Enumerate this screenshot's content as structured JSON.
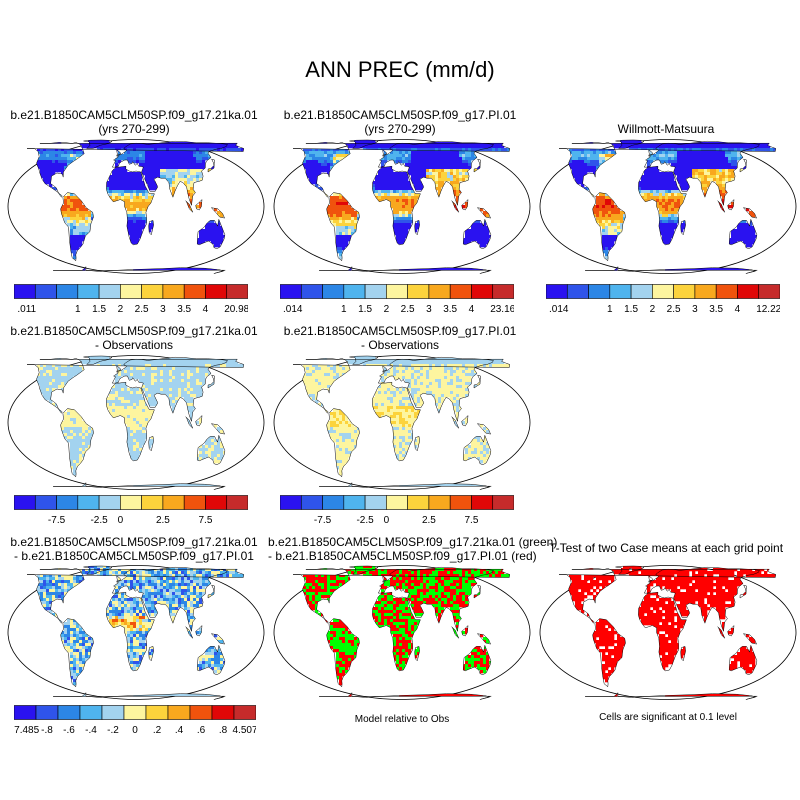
{
  "figure": {
    "title": "ANN PREC (mm/d)"
  },
  "palette": {
    "abs": [
      "#2a12f0",
      "#2f54ea",
      "#2c86e6",
      "#4fb4ee",
      "#a3d3ef",
      "#fdf59f",
      "#fcd33c",
      "#f8a81e",
      "#f0530d",
      "#e00707",
      "#c62b2b"
    ],
    "diff": [
      "#2a12f0",
      "#2f54ea",
      "#2c86e6",
      "#4fb4ee",
      "#a3d3ef",
      "#fdf59f",
      "#fcd33c",
      "#f8a81e",
      "#f0530d",
      "#e00707",
      "#c62b2b"
    ],
    "green": "#00ff00",
    "red": "#ff0000",
    "sea": "#ffffff"
  },
  "panels": [
    {
      "id": "p1",
      "title_l1": "b.e21.B1850CAM5CLM50SP.f09_g17.21ka.01",
      "title_l2": "(yrs 270-299)",
      "field": "case",
      "cbar": "abs",
      "cbar_labels": [
        ".011",
        "1",
        "1.5",
        "2",
        "2.5",
        "3",
        "3.5",
        "4",
        "20.982"
      ]
    },
    {
      "id": "p2",
      "title_l1": "b.e21.B1850CAM5CLM50SP.f09_g17.PI.01",
      "title_l2": "(yrs 270-299)",
      "field": "case",
      "cbar": "abs",
      "cbar_labels": [
        ".014",
        "1",
        "1.5",
        "2",
        "2.5",
        "3",
        "3.5",
        "4",
        "23.167"
      ]
    },
    {
      "id": "p3",
      "title_l1": "Willmott-Matsuura",
      "title_l2": "",
      "field": "obs",
      "cbar": "abs",
      "cbar_labels": [
        ".014",
        "1",
        "1.5",
        "2",
        "2.5",
        "3",
        "3.5",
        "4",
        "12.227"
      ]
    },
    {
      "id": "p4",
      "title_l1": "b.e21.B1850CAM5CLM50SP.f09_g17.21ka.01",
      "title_l2": "- Observations",
      "field": "bias21",
      "cbar": "diff",
      "cbar_labels": [
        "-7.5",
        "-2.5",
        "0",
        "2.5",
        "7.5"
      ]
    },
    {
      "id": "p5",
      "title_l1": "b.e21.B1850CAM5CLM50SP.f09_g17.PI.01",
      "title_l2": "- Observations",
      "field": "biasPI",
      "cbar": "diff",
      "cbar_labels": [
        "-7.5",
        "-2.5",
        "0",
        "2.5",
        "7.5"
      ]
    },
    {
      "id": "p7",
      "title_l1": "b.e21.B1850CAM5CLM50SP.f09_g17.21ka.01",
      "title_l2": "- b.e21.B1850CAM5CLM50SP.f09_g17.PI.01",
      "field": "casediff",
      "cbar": "diff",
      "cbar_labels": [
        "-7.485",
        "-.8",
        "-.6",
        "-.4",
        "-.2",
        "0",
        ".2",
        ".4",
        ".6",
        ".8",
        "4.507"
      ]
    },
    {
      "id": "p8",
      "title_l1": "b.e21.B1850CAM5CLM50SP.f09_g17.21ka.01 (green)",
      "title_l2": "- b.e21.B1850CAM5CLM50SP.f09_g17.PI.01 (red)",
      "field": "relobs",
      "caption": "Model relative to Obs"
    },
    {
      "id": "p9",
      "title_l1": "T-Test of two Case means at each grid point",
      "title_l2": "",
      "field": "ttest",
      "caption": "Cells are significant at 0.1 level"
    }
  ],
  "chart_data": [
    {
      "type": "heatmap",
      "title": "b.e21.B1850CAM5CLM50SP.f09_g17.21ka.01 (yrs 270-299)",
      "units": "mm/d",
      "min": 0.011,
      "max": 20.982,
      "contour_levels": [
        1,
        1.5,
        2,
        2.5,
        3,
        3.5,
        4
      ],
      "scale_labels": [
        ".011",
        "1",
        "1.5",
        "2",
        "2.5",
        "3",
        "3.5",
        "4",
        "20.982"
      ]
    },
    {
      "type": "heatmap",
      "title": "b.e21.B1850CAM5CLM50SP.f09_g17.PI.01 (yrs 270-299)",
      "units": "mm/d",
      "min": 0.014,
      "max": 23.167,
      "contour_levels": [
        1,
        1.5,
        2,
        2.5,
        3,
        3.5,
        4
      ],
      "scale_labels": [
        ".014",
        "1",
        "1.5",
        "2",
        "2.5",
        "3",
        "3.5",
        "4",
        "23.167"
      ]
    },
    {
      "type": "heatmap",
      "title": "Willmott-Matsuura",
      "units": "mm/d",
      "min": 0.014,
      "max": 12.227,
      "contour_levels": [
        1,
        1.5,
        2,
        2.5,
        3,
        3.5,
        4
      ],
      "scale_labels": [
        ".014",
        "1",
        "1.5",
        "2",
        "2.5",
        "3",
        "3.5",
        "4",
        "12.227"
      ]
    },
    {
      "type": "heatmap",
      "title": "b.e21.B1850CAM5CLM50SP.f09_g17.21ka.01 - Observations",
      "units": "mm/d",
      "scale_labels": [
        "-7.5",
        "-2.5",
        "0",
        "2.5",
        "7.5"
      ]
    },
    {
      "type": "heatmap",
      "title": "b.e21.B1850CAM5CLM50SP.f09_g17.PI.01 - Observations",
      "units": "mm/d",
      "scale_labels": [
        "-7.5",
        "-2.5",
        "0",
        "2.5",
        "7.5"
      ]
    },
    {
      "type": "heatmap",
      "title": "b.e21.B1850CAM5CLM50SP.f09_g17.21ka.01 - b.e21.B1850CAM5CLM50SP.f09_g17.PI.01",
      "units": "mm/d",
      "min": -7.485,
      "max": 4.507,
      "contour_levels": [
        -0.8,
        -0.6,
        -0.4,
        -0.2,
        0,
        0.2,
        0.4,
        0.6,
        0.8
      ],
      "scale_labels": [
        "-7.485",
        "-.8",
        "-.6",
        "-.4",
        "-.2",
        "0",
        ".2",
        ".4",
        ".6",
        ".8",
        "4.507"
      ]
    },
    {
      "type": "heatmap",
      "title": "b.e21.B1850CAM5CLM50SP.f09_g17.21ka.01 (green) - b.e21.B1850CAM5CLM50SP.f09_g17.PI.01 (red)",
      "caption": "Model relative to Obs",
      "legend": [
        "green",
        "red"
      ]
    },
    {
      "type": "heatmap",
      "title": "T-Test of two Case means at each grid point",
      "caption": "Cells are significant at 0.1 level",
      "legend": [
        "red"
      ]
    }
  ]
}
